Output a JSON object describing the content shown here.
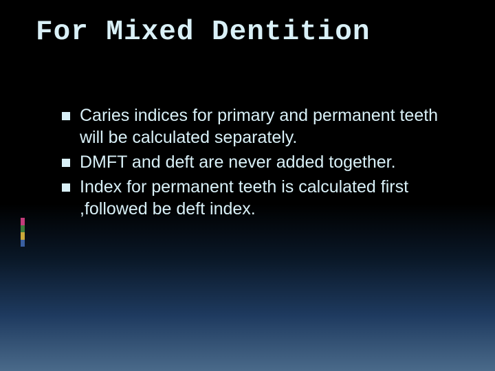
{
  "slide": {
    "title": "For Mixed Dentition",
    "bullets": [
      "Caries indices for primary and permanent teeth will be calculated separately.",
      "DMFT and deft are never added together.",
      "Index for permanent teeth is calculated first ,followed be deft index."
    ],
    "accent_colors": [
      "#c23b7a",
      "#3a7a3a",
      "#c9a93a",
      "#3a5fa0"
    ],
    "title_color": "#d9f0f7",
    "text_color": "#d9f0f7",
    "bg_gradient": {
      "from": "#000000",
      "to": "#4a6a8a"
    },
    "title_font": "monospace",
    "body_font": "sans-serif",
    "title_fontsize": 41,
    "body_fontsize": 25
  }
}
